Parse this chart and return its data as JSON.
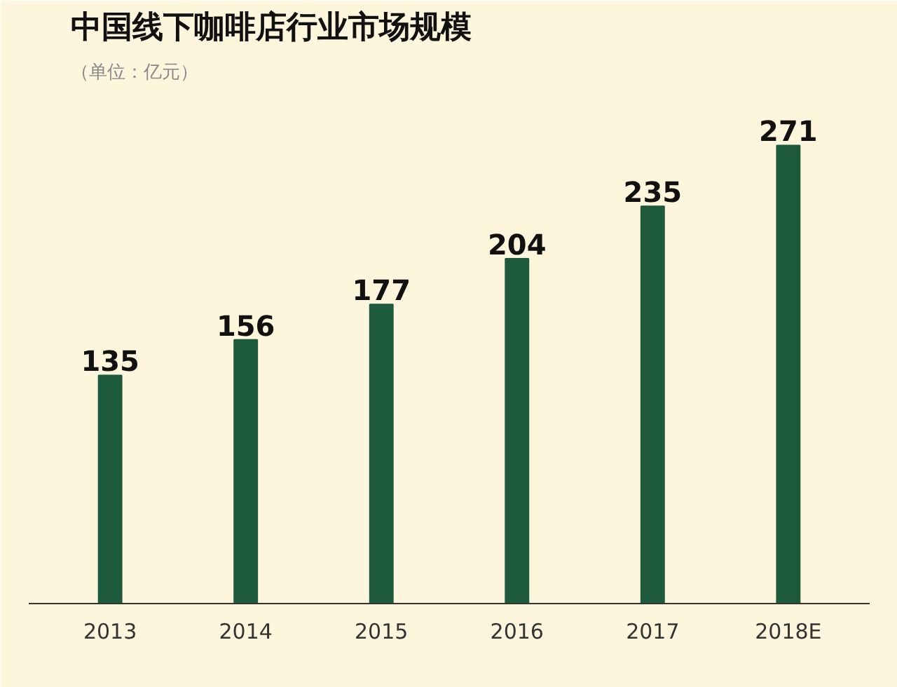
{
  "chart_data": {
    "type": "bar",
    "title": "中国线下咖啡店行业市场规模",
    "subtitle": "（单位：亿元）",
    "categories": [
      "2013",
      "2014",
      "2015",
      "2016",
      "2017",
      "2018E"
    ],
    "values": [
      135,
      156,
      177,
      204,
      235,
      271
    ],
    "color": "#1e5a3c",
    "data_labels": true
  }
}
